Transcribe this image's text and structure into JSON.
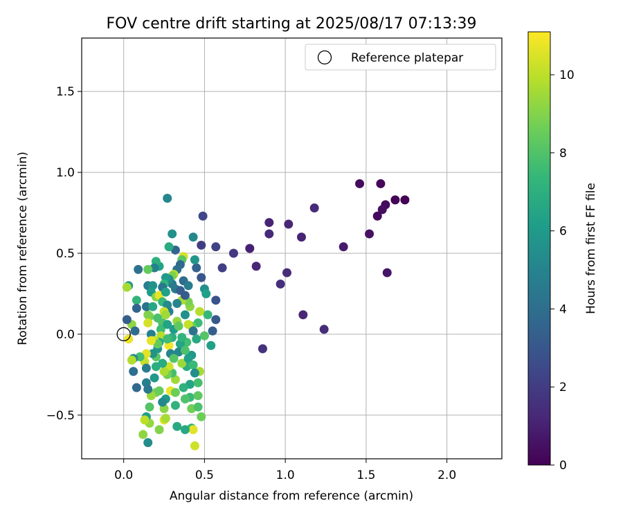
{
  "chart_data": {
    "type": "scatter",
    "title": "FOV centre drift starting at 2025/08/17 07:13:39",
    "xlabel": "Angular distance from reference (arcmin)",
    "ylabel": "Rotation from reference (arcmin)",
    "xlim": [
      -0.26,
      2.34
    ],
    "ylim": [
      -0.77,
      1.83
    ],
    "xticks": [
      0.0,
      0.5,
      1.0,
      1.5,
      2.0
    ],
    "xtick_labels": [
      "0.0",
      "0.5",
      "1.0",
      "1.5",
      "2.0"
    ],
    "yticks": [
      -0.5,
      0.0,
      0.5,
      1.0,
      1.5
    ],
    "ytick_labels": [
      "−0.5",
      "0.0",
      "0.5",
      "1.0",
      "1.5"
    ],
    "grid": true,
    "legend_position": "top-right",
    "legend": [
      {
        "label": "Reference platepar",
        "marker": "open-circle",
        "color": "#000000"
      }
    ],
    "reference_point": {
      "x": 0.0,
      "y": 0.0
    },
    "colorbar": {
      "label": "Hours from first FF file",
      "range": [
        0,
        11.1
      ],
      "ticks": [
        0,
        2,
        4,
        6,
        8,
        10
      ],
      "tick_labels": [
        "0",
        "2",
        "4",
        "6",
        "8",
        "10"
      ],
      "colormap": "viridis",
      "stops": [
        "#440154",
        "#482878",
        "#3e4989",
        "#31688e",
        "#26828e",
        "#1f9e89",
        "#35b779",
        "#6ece58",
        "#b5de2b",
        "#fde725"
      ]
    },
    "points": [
      {
        "x": 1.46,
        "y": 0.93,
        "h": 0.3
      },
      {
        "x": 1.59,
        "y": 0.93,
        "h": 0.2
      },
      {
        "x": 1.68,
        "y": 0.83,
        "h": 0.1
      },
      {
        "x": 1.74,
        "y": 0.83,
        "h": 0.0
      },
      {
        "x": 1.62,
        "y": 0.8,
        "h": 0.3
      },
      {
        "x": 1.6,
        "y": 0.77,
        "h": 0.4
      },
      {
        "x": 1.57,
        "y": 0.73,
        "h": 0.3
      },
      {
        "x": 1.52,
        "y": 0.62,
        "h": 0.5
      },
      {
        "x": 1.63,
        "y": 0.38,
        "h": 0.6
      },
      {
        "x": 1.36,
        "y": 0.54,
        "h": 0.8
      },
      {
        "x": 1.18,
        "y": 0.78,
        "h": 1.3
      },
      {
        "x": 1.24,
        "y": 0.03,
        "h": 1.4
      },
      {
        "x": 1.11,
        "y": 0.12,
        "h": 1.2
      },
      {
        "x": 1.1,
        "y": 0.6,
        "h": 1.1
      },
      {
        "x": 1.02,
        "y": 0.68,
        "h": 1.2
      },
      {
        "x": 1.01,
        "y": 0.38,
        "h": 1.4
      },
      {
        "x": 0.97,
        "y": 0.31,
        "h": 1.5
      },
      {
        "x": 0.9,
        "y": 0.69,
        "h": 1.1
      },
      {
        "x": 0.9,
        "y": 0.62,
        "h": 1.3
      },
      {
        "x": 0.86,
        "y": -0.09,
        "h": 1.6
      },
      {
        "x": 0.82,
        "y": 0.42,
        "h": 1.2
      },
      {
        "x": 0.78,
        "y": 0.53,
        "h": 1.0
      },
      {
        "x": 0.68,
        "y": 0.5,
        "h": 1.8
      },
      {
        "x": 0.61,
        "y": 0.41,
        "h": 2.1
      },
      {
        "x": 0.57,
        "y": 0.54,
        "h": 2.2
      },
      {
        "x": 0.57,
        "y": 0.21,
        "h": 2.9
      },
      {
        "x": 0.57,
        "y": 0.09,
        "h": 3.1
      },
      {
        "x": 0.55,
        "y": 0.02,
        "h": 3.3
      },
      {
        "x": 0.49,
        "y": 0.73,
        "h": 2.4
      },
      {
        "x": 0.48,
        "y": 0.55,
        "h": 2.0
      },
      {
        "x": 0.48,
        "y": 0.35,
        "h": 3.0
      },
      {
        "x": 0.45,
        "y": 0.41,
        "h": 3.5
      },
      {
        "x": 0.43,
        "y": 0.6,
        "h": 5.2
      },
      {
        "x": 0.44,
        "y": 0.46,
        "h": 5.8
      },
      {
        "x": 0.5,
        "y": 0.28,
        "h": 5.5
      },
      {
        "x": 0.51,
        "y": 0.25,
        "h": 6.2
      },
      {
        "x": 0.52,
        "y": 0.12,
        "h": 7.4
      },
      {
        "x": 0.54,
        "y": -0.07,
        "h": 6.3
      },
      {
        "x": 0.5,
        "y": -0.01,
        "h": 8.1
      },
      {
        "x": 0.47,
        "y": 0.14,
        "h": 9.9
      },
      {
        "x": 0.46,
        "y": 0.07,
        "h": 7.6
      },
      {
        "x": 0.45,
        "y": -0.03,
        "h": 6.7
      },
      {
        "x": 0.42,
        "y": 0.05,
        "h": 8.5
      },
      {
        "x": 0.42,
        "y": -0.13,
        "h": 5.9
      },
      {
        "x": 0.41,
        "y": 0.17,
        "h": 9.2
      },
      {
        "x": 0.4,
        "y": 0.2,
        "h": 8.8
      },
      {
        "x": 0.4,
        "y": 0.06,
        "h": 10.1
      },
      {
        "x": 0.39,
        "y": -0.05,
        "h": 7.7
      },
      {
        "x": 0.39,
        "y": -0.2,
        "h": 6.9
      },
      {
        "x": 0.41,
        "y": -0.31,
        "h": 6.5
      },
      {
        "x": 0.41,
        "y": -0.39,
        "h": 7.5
      },
      {
        "x": 0.42,
        "y": -0.46,
        "h": 8.7
      },
      {
        "x": 0.42,
        "y": -0.58,
        "h": 7.2
      },
      {
        "x": 0.44,
        "y": -0.69,
        "h": 10.3
      },
      {
        "x": 0.47,
        "y": -0.23,
        "h": 9.6
      },
      {
        "x": 0.46,
        "y": -0.3,
        "h": 7.8
      },
      {
        "x": 0.46,
        "y": -0.38,
        "h": 8.3
      },
      {
        "x": 0.46,
        "y": -0.45,
        "h": 7.9
      },
      {
        "x": 0.48,
        "y": -0.51,
        "h": 8.6
      },
      {
        "x": 0.43,
        "y": -0.59,
        "h": 10.6
      },
      {
        "x": 0.38,
        "y": -0.59,
        "h": 6.6
      },
      {
        "x": 0.37,
        "y": -0.33,
        "h": 7.1
      },
      {
        "x": 0.36,
        "y": -0.18,
        "h": 9.4
      },
      {
        "x": 0.36,
        "y": 0.21,
        "h": 9.7
      },
      {
        "x": 0.37,
        "y": 0.48,
        "h": 10.4
      },
      {
        "x": 0.36,
        "y": 0.46,
        "h": 8.2
      },
      {
        "x": 0.35,
        "y": 0.43,
        "h": 3.8
      },
      {
        "x": 0.33,
        "y": 0.4,
        "h": 4.1
      },
      {
        "x": 0.32,
        "y": 0.52,
        "h": 3.6
      },
      {
        "x": 0.3,
        "y": 0.62,
        "h": 5.6
      },
      {
        "x": 0.28,
        "y": 0.54,
        "h": 6.8
      },
      {
        "x": 0.27,
        "y": 0.84,
        "h": 5.1
      },
      {
        "x": 0.31,
        "y": 0.37,
        "h": 9.8
      },
      {
        "x": 0.3,
        "y": 0.36,
        "h": 8.9
      },
      {
        "x": 0.3,
        "y": 0.31,
        "h": 4.6
      },
      {
        "x": 0.28,
        "y": 0.34,
        "h": 5.4
      },
      {
        "x": 0.26,
        "y": 0.35,
        "h": 6.0
      },
      {
        "x": 0.25,
        "y": 0.31,
        "h": 7.3
      },
      {
        "x": 0.24,
        "y": 0.29,
        "h": 4.4
      },
      {
        "x": 0.22,
        "y": 0.42,
        "h": 6.4
      },
      {
        "x": 0.2,
        "y": 0.45,
        "h": 7.0
      },
      {
        "x": 0.19,
        "y": 0.41,
        "h": 4.9
      },
      {
        "x": 0.15,
        "y": 0.4,
        "h": 8.4
      },
      {
        "x": 0.09,
        "y": 0.4,
        "h": 4.2
      },
      {
        "x": 0.15,
        "y": 0.3,
        "h": 4.7
      },
      {
        "x": 0.18,
        "y": 0.3,
        "h": 5.7
      },
      {
        "x": 0.17,
        "y": 0.26,
        "h": 6.1
      },
      {
        "x": 0.2,
        "y": 0.23,
        "h": 9.1
      },
      {
        "x": 0.22,
        "y": 0.24,
        "h": 10.7
      },
      {
        "x": 0.24,
        "y": 0.2,
        "h": 7.4
      },
      {
        "x": 0.26,
        "y": 0.26,
        "h": 6.3
      },
      {
        "x": 0.27,
        "y": 0.18,
        "h": 5.3
      },
      {
        "x": 0.28,
        "y": 0.14,
        "h": 4.8
      },
      {
        "x": 0.25,
        "y": 0.14,
        "h": 10.2
      },
      {
        "x": 0.26,
        "y": 0.12,
        "h": 9.5
      },
      {
        "x": 0.24,
        "y": 0.07,
        "h": 8.0
      },
      {
        "x": 0.23,
        "y": 0.03,
        "h": 7.6
      },
      {
        "x": 0.23,
        "y": -0.01,
        "h": 9.9
      },
      {
        "x": 0.22,
        "y": -0.05,
        "h": 6.7
      },
      {
        "x": 0.21,
        "y": -0.09,
        "h": 5.8
      },
      {
        "x": 0.2,
        "y": -0.14,
        "h": 8.2
      },
      {
        "x": 0.2,
        "y": -0.2,
        "h": 6.9
      },
      {
        "x": 0.19,
        "y": -0.27,
        "h": 5.9
      },
      {
        "x": 0.2,
        "y": -0.36,
        "h": 8.8
      },
      {
        "x": 0.17,
        "y": -0.38,
        "h": 9.4
      },
      {
        "x": 0.16,
        "y": -0.45,
        "h": 8.1
      },
      {
        "x": 0.16,
        "y": -0.55,
        "h": 9.3
      },
      {
        "x": 0.14,
        "y": -0.51,
        "h": 6.2
      },
      {
        "x": 0.13,
        "y": -0.53,
        "h": 10.0
      },
      {
        "x": 0.12,
        "y": -0.62,
        "h": 9.2
      },
      {
        "x": 0.15,
        "y": -0.67,
        "h": 5.4
      },
      {
        "x": 0.22,
        "y": -0.59,
        "h": 9.0
      },
      {
        "x": 0.25,
        "y": -0.53,
        "h": 10.5
      },
      {
        "x": 0.26,
        "y": -0.52,
        "h": 9.6
      },
      {
        "x": 0.25,
        "y": -0.46,
        "h": 9.1
      },
      {
        "x": 0.26,
        "y": -0.4,
        "h": 6.0
      },
      {
        "x": 0.24,
        "y": -0.42,
        "h": 5.2
      },
      {
        "x": 0.22,
        "y": -0.35,
        "h": 8.5
      },
      {
        "x": 0.29,
        "y": -0.35,
        "h": 10.8
      },
      {
        "x": 0.32,
        "y": -0.44,
        "h": 7.1
      },
      {
        "x": 0.33,
        "y": -0.57,
        "h": 6.7
      },
      {
        "x": 0.32,
        "y": -0.28,
        "h": 9.5
      },
      {
        "x": 0.3,
        "y": -0.24,
        "h": 7.8
      },
      {
        "x": 0.28,
        "y": -0.2,
        "h": 10.3
      },
      {
        "x": 0.27,
        "y": -0.25,
        "h": 8.7
      },
      {
        "x": 0.25,
        "y": -0.23,
        "h": 9.7
      },
      {
        "x": 0.24,
        "y": -0.18,
        "h": 6.8
      },
      {
        "x": 0.28,
        "y": -0.07,
        "h": 10.9
      },
      {
        "x": 0.3,
        "y": -0.02,
        "h": 7.0
      },
      {
        "x": 0.31,
        "y": 0.03,
        "h": 6.1
      },
      {
        "x": 0.33,
        "y": 0.08,
        "h": 9.3
      },
      {
        "x": 0.34,
        "y": 0.05,
        "h": 8.3
      },
      {
        "x": 0.33,
        "y": 0.19,
        "h": 5.0
      },
      {
        "x": 0.32,
        "y": 0.28,
        "h": 4.5
      },
      {
        "x": 0.35,
        "y": 0.27,
        "h": 3.4
      },
      {
        "x": 0.38,
        "y": 0.24,
        "h": 3.2
      },
      {
        "x": 0.38,
        "y": 0.12,
        "h": 5.6
      },
      {
        "x": 0.35,
        "y": -0.06,
        "h": 6.5
      },
      {
        "x": 0.34,
        "y": -0.11,
        "h": 5.1
      },
      {
        "x": 0.36,
        "y": -0.02,
        "h": 7.2
      },
      {
        "x": 0.38,
        "y": -0.1,
        "h": 7.9
      },
      {
        "x": 0.4,
        "y": -0.15,
        "h": 6.2
      },
      {
        "x": 0.43,
        "y": -0.19,
        "h": 7.5
      },
      {
        "x": 0.44,
        "y": -0.24,
        "h": 5.5
      },
      {
        "x": 0.38,
        "y": -0.4,
        "h": 8.0
      },
      {
        "x": 0.32,
        "y": -0.36,
        "h": 8.6
      },
      {
        "x": 0.17,
        "y": 0.0,
        "h": 4.9
      },
      {
        "x": 0.15,
        "y": 0.12,
        "h": 9.0
      },
      {
        "x": 0.14,
        "y": 0.17,
        "h": 4.3
      },
      {
        "x": 0.16,
        "y": 0.11,
        "h": 8.9
      },
      {
        "x": 0.15,
        "y": 0.07,
        "h": 10.4
      },
      {
        "x": 0.18,
        "y": 0.17,
        "h": 6.6
      },
      {
        "x": 0.19,
        "y": -0.04,
        "h": 10.1
      },
      {
        "x": 0.21,
        "y": -0.06,
        "h": 8.4
      },
      {
        "x": 0.18,
        "y": -0.12,
        "h": 5.7
      },
      {
        "x": 0.14,
        "y": -0.12,
        "h": 10.6
      },
      {
        "x": 0.13,
        "y": -0.17,
        "h": 10.2
      },
      {
        "x": 0.14,
        "y": -0.21,
        "h": 4.6
      },
      {
        "x": 0.14,
        "y": -0.3,
        "h": 4.8
      },
      {
        "x": 0.15,
        "y": -0.34,
        "h": 4.4
      },
      {
        "x": 0.1,
        "y": -0.14,
        "h": 7.7
      },
      {
        "x": 0.06,
        "y": -0.15,
        "h": 5.3
      },
      {
        "x": 0.06,
        "y": -0.23,
        "h": 4.0
      },
      {
        "x": 0.08,
        "y": -0.33,
        "h": 3.7
      },
      {
        "x": 0.05,
        "y": -0.16,
        "h": 9.8
      },
      {
        "x": 0.05,
        "y": 0.06,
        "h": 9.2
      },
      {
        "x": 0.03,
        "y": -0.03,
        "h": 10.8
      },
      {
        "x": 0.02,
        "y": 0.09,
        "h": 3.3
      },
      {
        "x": 0.08,
        "y": 0.21,
        "h": 7.3
      },
      {
        "x": 0.07,
        "y": 0.02,
        "h": 3.9
      },
      {
        "x": 0.03,
        "y": 0.3,
        "h": 5.9
      },
      {
        "x": 0.02,
        "y": 0.29,
        "h": 9.6
      },
      {
        "x": 0.08,
        "y": 0.16,
        "h": 3.6
      },
      {
        "x": 0.17,
        "y": -0.04,
        "h": 10.7
      },
      {
        "x": 0.21,
        "y": 0.1,
        "h": 7.9
      },
      {
        "x": 0.27,
        "y": 0.06,
        "h": 6.4
      },
      {
        "x": 0.29,
        "y": -0.12,
        "h": 5.0
      },
      {
        "x": 0.37,
        "y": 0.33,
        "h": 3.9
      },
      {
        "x": 0.4,
        "y": 0.3,
        "h": 4.7
      },
      {
        "x": 0.43,
        "y": 0.02,
        "h": 4.2
      },
      {
        "x": 0.27,
        "y": -0.03,
        "h": 7.6
      },
      {
        "x": 0.31,
        "y": -0.15,
        "h": 8.1
      }
    ]
  }
}
